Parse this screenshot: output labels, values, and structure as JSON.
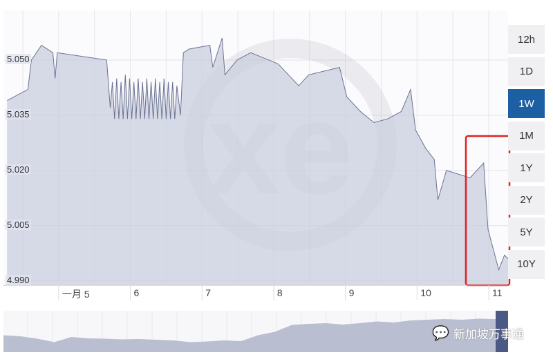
{
  "chart_data": {
    "type": "area",
    "ylim": [
      4.989,
      5.0635
    ],
    "xlim": [
      4.23,
      11.27
    ],
    "grid": true,
    "y_ticks": [
      "5.050",
      "5.035",
      "5.020",
      "5.005",
      "4.990"
    ],
    "y_tick_values": [
      5.05,
      5.035,
      5.02,
      5.005,
      4.99
    ],
    "x_ticks": [
      "一月 5",
      "6",
      "7",
      "8",
      "9",
      "10",
      "11"
    ],
    "x_tick_values": [
      5,
      6,
      7,
      8,
      9,
      10,
      11
    ],
    "series": [
      {
        "points": [
          [
            4.28,
            5.039
          ],
          [
            4.57,
            5.042
          ],
          [
            4.62,
            5.05
          ],
          [
            4.76,
            5.054
          ],
          [
            4.92,
            5.052
          ],
          [
            4.95,
            5.045
          ],
          [
            4.98,
            5.052
          ],
          [
            5.67,
            5.05
          ],
          [
            5.72,
            5.037
          ],
          [
            5.75,
            5.044
          ],
          [
            5.78,
            5.034
          ],
          [
            5.81,
            5.045
          ],
          [
            5.84,
            5.034
          ],
          [
            5.87,
            5.044
          ],
          [
            5.9,
            5.034
          ],
          [
            5.93,
            5.046
          ],
          [
            5.96,
            5.034
          ],
          [
            5.99,
            5.045
          ],
          [
            6.02,
            5.034
          ],
          [
            6.05,
            5.044
          ],
          [
            6.08,
            5.034
          ],
          [
            6.11,
            5.045
          ],
          [
            6.14,
            5.034
          ],
          [
            6.17,
            5.044
          ],
          [
            6.2,
            5.034
          ],
          [
            6.23,
            5.045
          ],
          [
            6.26,
            5.034
          ],
          [
            6.29,
            5.044
          ],
          [
            6.32,
            5.034
          ],
          [
            6.35,
            5.045
          ],
          [
            6.38,
            5.034
          ],
          [
            6.41,
            5.044
          ],
          [
            6.44,
            5.034
          ],
          [
            6.47,
            5.045
          ],
          [
            6.5,
            5.034
          ],
          [
            6.53,
            5.044
          ],
          [
            6.56,
            5.034
          ],
          [
            6.59,
            5.044
          ],
          [
            6.62,
            5.034
          ],
          [
            6.65,
            5.043
          ],
          [
            6.7,
            5.035
          ],
          [
            6.74,
            5.052
          ],
          [
            6.82,
            5.053
          ],
          [
            7.11,
            5.054
          ],
          [
            7.15,
            5.048
          ],
          [
            7.28,
            5.056
          ],
          [
            7.32,
            5.046
          ],
          [
            7.49,
            5.05
          ],
          [
            7.68,
            5.052
          ],
          [
            8.06,
            5.049
          ],
          [
            8.35,
            5.043
          ],
          [
            8.49,
            5.046
          ],
          [
            8.92,
            5.048
          ],
          [
            9.02,
            5.04
          ],
          [
            9.21,
            5.036
          ],
          [
            9.4,
            5.033
          ],
          [
            9.59,
            5.034
          ],
          [
            9.78,
            5.036
          ],
          [
            9.91,
            5.042
          ],
          [
            9.98,
            5.031
          ],
          [
            10.12,
            5.026
          ],
          [
            10.24,
            5.023
          ],
          [
            10.29,
            5.012
          ],
          [
            10.41,
            5.02
          ],
          [
            10.74,
            5.018
          ],
          [
            10.93,
            5.022
          ],
          [
            10.99,
            5.004
          ],
          [
            11.14,
            4.993
          ],
          [
            11.22,
            4.997
          ],
          [
            11.27,
            4.996
          ]
        ]
      }
    ],
    "navigator": [
      0.45,
      0.42,
      0.35,
      0.25,
      0.4,
      0.36,
      0.35,
      0.33,
      0.34,
      0.32,
      0.3,
      0.25,
      0.27,
      0.3,
      0.28,
      0.45,
      0.55,
      0.75,
      0.78,
      0.8,
      0.76,
      0.8,
      0.85,
      0.82,
      0.88,
      0.9,
      0.92,
      0.9,
      0.93,
      0.92
    ],
    "highlight_color": "#e02020",
    "line_color": "#6b7391",
    "fill_color": "#c9cedd"
  },
  "ranges": [
    {
      "label": "12h",
      "active": false
    },
    {
      "label": "1D",
      "active": false
    },
    {
      "label": "1W",
      "active": true
    },
    {
      "label": "1M",
      "active": false
    },
    {
      "label": "1Y",
      "active": false
    },
    {
      "label": "2Y",
      "active": false
    },
    {
      "label": "5Y",
      "active": false
    },
    {
      "label": "10Y",
      "active": false
    }
  ],
  "watermark": {
    "text": "新加坡万事通",
    "logo": "xe"
  }
}
